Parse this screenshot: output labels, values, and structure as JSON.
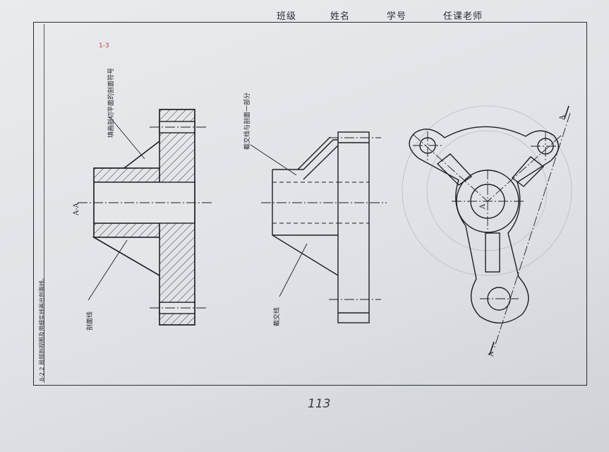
{
  "header": {
    "class_label": "班级",
    "name_label": "姓名",
    "student_id_label": "学号",
    "teacher_label": "任课老师"
  },
  "side_title": "8-2.2 局部剖视图及用细实线画出剖面线。",
  "red_note": "1-3",
  "page_number": "113",
  "labels": {
    "section_label": "A-A",
    "annotation_left": "填画剖切平面的剖面符号",
    "annotation_left_bottom": "剖面线",
    "annotation_middle": "截交线与剖面一部分",
    "annotation_middle_bottom": "截交线",
    "cut_a_top": "A",
    "cut_a_bottom": "A",
    "center_label": "A"
  },
  "colors": {
    "line": "#1c1e22",
    "paper": "#e4e6ea",
    "red_ink": "#c23a3a"
  }
}
